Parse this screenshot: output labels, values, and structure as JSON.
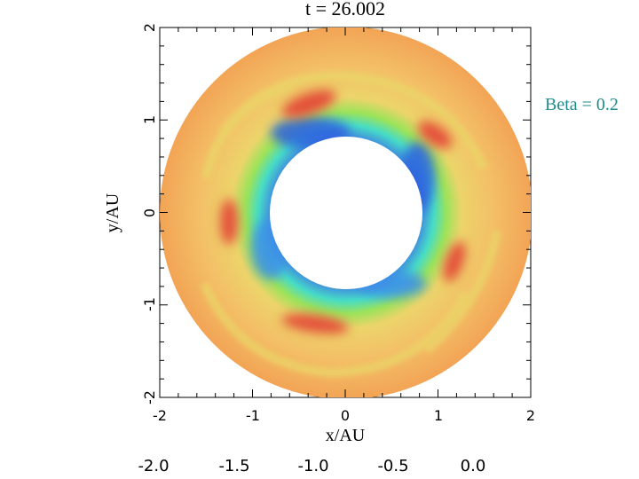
{
  "title": "t = 26.002",
  "annotation": "Beta = 0.2",
  "annotation_color": "#1e8c8c",
  "chart_data": {
    "type": "heatmap",
    "title": "t = 26.002",
    "xlabel": "x/AU",
    "ylabel": "y/AU",
    "xlim": [
      -2,
      2
    ],
    "ylim": [
      -2,
      2
    ],
    "x_ticks": [
      "-2",
      "-1",
      "0",
      "1",
      "2"
    ],
    "y_ticks": [
      "-2",
      "-1",
      "0",
      "1",
      "2"
    ],
    "inner_radius": 0.82,
    "outer_radius": 2.0,
    "colors": {
      "outer": "#f2a455",
      "ring": "#ecd46a",
      "inner_low": "#3f74e6",
      "mid": "#46dcc6",
      "green": "#9be35a",
      "blob": "#e4513a"
    },
    "extra_axis_ticks": [
      "-2.0",
      "-1.5",
      "-1.0",
      "-0.5",
      "0.0"
    ]
  }
}
